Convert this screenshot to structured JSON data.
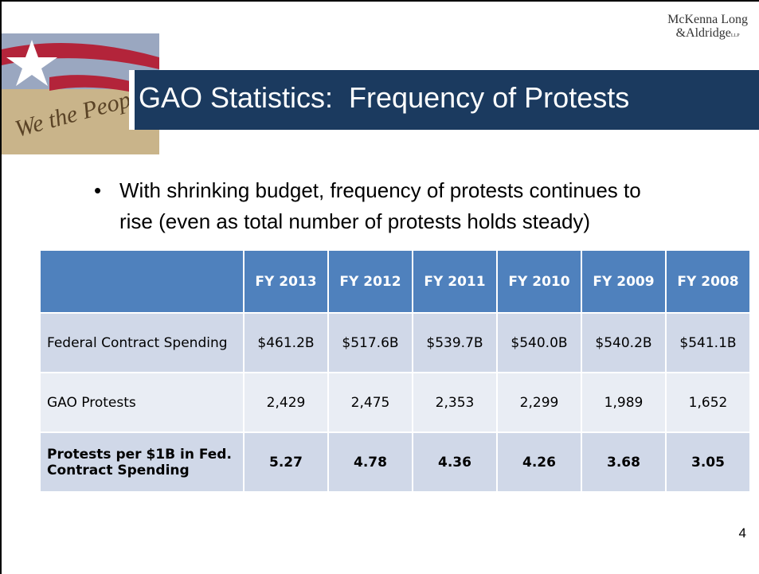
{
  "logo": {
    "line1": "McKenna Long",
    "line2": "&Aldridge",
    "suffix": "LLP"
  },
  "title": "GAO Statistics:  Frequency of Protests",
  "bullet": "With shrinking budget, frequency of protests continues to rise (even as total number of protests holds steady)",
  "table": {
    "columns": [
      "FY 2013",
      "FY 2012",
      "FY 2011",
      "FY 2010",
      "FY 2009",
      "FY 2008"
    ],
    "rows": [
      {
        "label": "Federal Contract Spending",
        "values": [
          "$461.2B",
          "$517.6B",
          "$539.7B",
          "$540.0B",
          "$540.2B",
          "$541.1B"
        ]
      },
      {
        "label": "GAO Protests",
        "values": [
          "2,429",
          "2,475",
          "2,353",
          "2,299",
          "1,989",
          "1,652"
        ]
      },
      {
        "label": "Protests per $1B in Fed. Contract Spending",
        "values": [
          "5.27",
          "4.78",
          "4.36",
          "4.26",
          "3.68",
          "3.05"
        ]
      }
    ]
  },
  "page_number": "4"
}
